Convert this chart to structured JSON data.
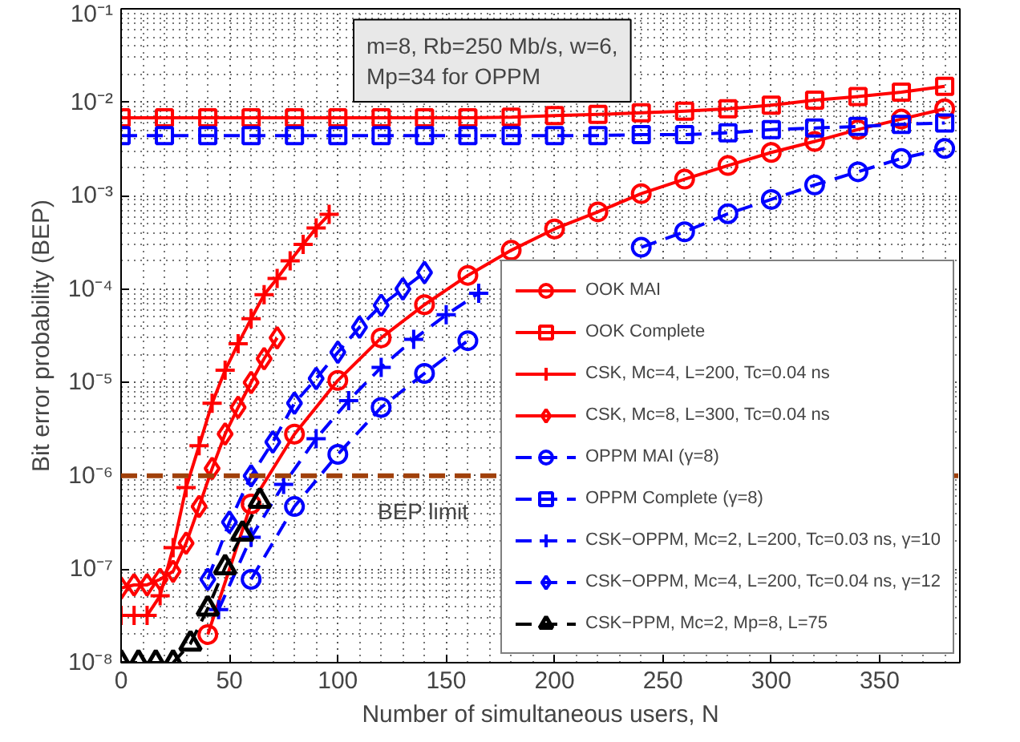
{
  "chart_data": {
    "type": "line",
    "xlabel": "Number of simultaneous users, N",
    "ylabel": "Bit error probability (BEP)",
    "xlim": [
      0,
      387
    ],
    "xticks": [
      0,
      50,
      100,
      150,
      200,
      250,
      300,
      350
    ],
    "ylim": [
      1e-08,
      0.1
    ],
    "yticks": [
      {
        "value": 1e-08,
        "label": "10⁻⁸"
      },
      {
        "value": 1e-07,
        "label": "10⁻⁷"
      },
      {
        "value": 1e-06,
        "label": "10⁻⁶"
      },
      {
        "value": 1e-05,
        "label": "10⁻⁵"
      },
      {
        "value": 0.0001,
        "label": "10⁻⁴"
      },
      {
        "value": 0.001,
        "label": "10⁻³"
      },
      {
        "value": 0.01,
        "label": "10⁻²"
      },
      {
        "value": 0.1,
        "label": "10⁻¹"
      }
    ],
    "log": "y",
    "grid": true,
    "legend": "bottom right",
    "annotations": [
      "m=8, Rb=250 Mb/s, w=6,\nMp=34 for OPPM"
    ],
    "ref_lines": [
      {
        "axis": "y",
        "value": 1e-06,
        "label": "BEP limit",
        "color": "#a0400a",
        "line_style": "dashed"
      }
    ],
    "series": [
      {
        "name": "OOK MAI",
        "color": "#ff0000",
        "marker": "circle",
        "line_style": "solid",
        "x": [
          40,
          60,
          80,
          100,
          120,
          140,
          160,
          180,
          200,
          220,
          240,
          260,
          280,
          300,
          320,
          340,
          360,
          380
        ],
        "values": [
          2e-08,
          5e-07,
          2.8e-06,
          1.05e-05,
          3e-05,
          6.8e-05,
          0.00014,
          0.00026,
          0.00044,
          0.00067,
          0.00105,
          0.0015,
          0.0021,
          0.0029,
          0.0038,
          0.0051,
          0.0066,
          0.0085
        ]
      },
      {
        "name": "OOK Complete",
        "color": "#ff0000",
        "marker": "square",
        "line_style": "solid",
        "x": [
          0,
          20,
          40,
          60,
          80,
          100,
          120,
          140,
          160,
          180,
          200,
          220,
          240,
          260,
          280,
          300,
          320,
          340,
          360,
          380
        ],
        "values": [
          0.0068,
          0.0068,
          0.0068,
          0.0068,
          0.0068,
          0.0068,
          0.0068,
          0.0068,
          0.0068,
          0.0069,
          0.0072,
          0.0074,
          0.0077,
          0.008,
          0.0085,
          0.0093,
          0.0105,
          0.0115,
          0.0128,
          0.0148
        ]
      },
      {
        "name": "CSK, Mc=4, L=200, Tc=0.04 ns",
        "color": "#ff0000",
        "marker": "cross",
        "line_style": "solid",
        "x": [
          0,
          6,
          12,
          18,
          24,
          30,
          36,
          42,
          48,
          54,
          60,
          66,
          72,
          78,
          84,
          90,
          96
        ],
        "values": [
          3.2e-08,
          3.2e-08,
          3.2e-08,
          5.2e-08,
          1.7e-07,
          7.5e-07,
          2.1e-06,
          6e-06,
          1.35e-05,
          2.6e-05,
          4.8e-05,
          8.7e-05,
          0.00013,
          0.0002,
          0.0003,
          0.00045,
          0.00063
        ]
      },
      {
        "name": "CSK, Mc=8, L=300, Tc=0.04 ns",
        "color": "#ff0000",
        "marker": "diamond",
        "line_style": "solid",
        "x": [
          0,
          6,
          12,
          18,
          24,
          30,
          36,
          42,
          48,
          54,
          60,
          66,
          72
        ],
        "values": [
          6.3e-08,
          6.8e-08,
          6.8e-08,
          7.8e-08,
          9.5e-08,
          1.9e-07,
          4.7e-07,
          1.2e-06,
          2.8e-06,
          5.4e-06,
          1e-05,
          1.8e-05,
          3e-05
        ]
      },
      {
        "name": "OPPM MAI (γ=8)",
        "color": "#0000ff",
        "marker": "circle",
        "line_style": "dashed",
        "x": [
          60,
          80,
          100,
          120,
          140,
          160,
          180,
          200,
          220,
          240,
          260,
          280,
          300,
          320,
          340,
          360,
          380
        ],
        "values": [
          7.8e-08,
          4.7e-07,
          1.7e-06,
          5.4e-06,
          1.25e-05,
          2.8e-05,
          null,
          null,
          null,
          0.00028,
          0.00041,
          0.00064,
          0.00091,
          0.0013,
          0.0018,
          0.0025,
          0.0032
        ]
      },
      {
        "name": "OPPM Complete (γ=8)",
        "color": "#0000ff",
        "marker": "square",
        "line_style": "dashed",
        "x": [
          0,
          20,
          40,
          60,
          80,
          100,
          120,
          140,
          160,
          180,
          200,
          220,
          240,
          260,
          280,
          300,
          320,
          340,
          360,
          380
        ],
        "values": [
          0.0044,
          0.0044,
          0.0044,
          0.0044,
          0.0044,
          0.0044,
          0.0044,
          0.0044,
          0.0044,
          0.0044,
          0.0044,
          0.0044,
          0.0045,
          0.0045,
          0.0047,
          0.0051,
          0.0053,
          0.0055,
          0.0058,
          0.006
        ]
      },
      {
        "name": "CSK−OPPM, Mc=2, L=200, Tc=0.03 ns, γ=10",
        "color": "#0000ff",
        "marker": "cross",
        "line_style": "dashed",
        "x": [
          45,
          60,
          75,
          90,
          105,
          120,
          135,
          150,
          165
        ],
        "values": [
          3.7e-08,
          2.2e-07,
          8.1e-07,
          2.5e-06,
          6.4e-06,
          1.45e-05,
          2.9e-05,
          5.3e-05,
          9e-05
        ]
      },
      {
        "name": "CSK−OPPM, Mc=4, L=200, Tc=0.04 ns, γ=12",
        "color": "#0000ff",
        "marker": "diamond",
        "line_style": "dashed",
        "x": [
          40,
          50,
          60,
          70,
          80,
          90,
          100,
          110,
          120,
          130,
          140
        ],
        "values": [
          7.8e-08,
          3.2e-07,
          1e-06,
          2.3e-06,
          6e-06,
          1.1e-05,
          2.1e-05,
          3.9e-05,
          6.7e-05,
          0.0001,
          0.00015
        ]
      },
      {
        "name": "CSK−PPM, Mc=2, Mp=8, L=75",
        "color": "#000000",
        "marker": "triangle",
        "line_style": "dashed",
        "x": [
          0,
          8,
          16,
          24,
          32,
          40,
          48,
          56,
          64
        ],
        "values": [
          1e-08,
          1e-08,
          1e-08,
          1e-08,
          1.6e-08,
          3.8e-08,
          1.05e-07,
          2.4e-07,
          5.4e-07
        ]
      }
    ]
  }
}
